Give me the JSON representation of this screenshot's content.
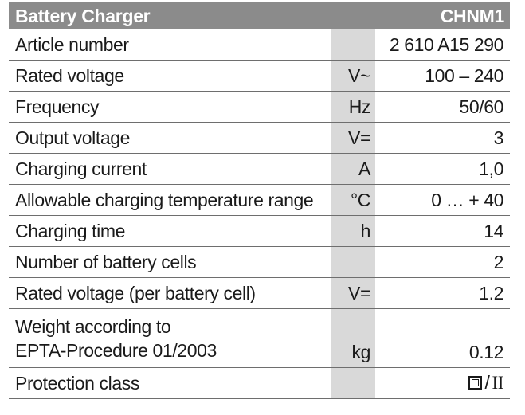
{
  "header": {
    "title": "Battery Charger",
    "model": "CHNM1"
  },
  "rows": [
    {
      "label": "Article number",
      "unit": "",
      "value": "2 610 A15 290"
    },
    {
      "label": "Rated voltage",
      "unit": "V~",
      "value": "100 – 240"
    },
    {
      "label": "Frequency",
      "unit": "Hz",
      "value": "50/60"
    },
    {
      "label": "Output voltage",
      "unit": "V=",
      "value": "3"
    },
    {
      "label": "Charging current",
      "unit": "A",
      "value": "1,0"
    },
    {
      "label": "Allowable charging temperature range",
      "unit": "°C",
      "value": "0 … + 40"
    },
    {
      "label": "Charging time",
      "unit": "h",
      "value": "14"
    },
    {
      "label": "Number of battery cells",
      "unit": "",
      "value": "2"
    },
    {
      "label": "Rated voltage (per battery cell)",
      "unit": "V=",
      "value": "1.2"
    },
    {
      "label_line1": "Weight according to",
      "label_line2": "EPTA-Procedure 01/2003",
      "unit": "kg",
      "value": "0.12"
    },
    {
      "label": "Protection class",
      "unit": "",
      "value_separator": "/",
      "value_class": "II",
      "value_icon": "double-insulation-square-icon"
    }
  ]
}
